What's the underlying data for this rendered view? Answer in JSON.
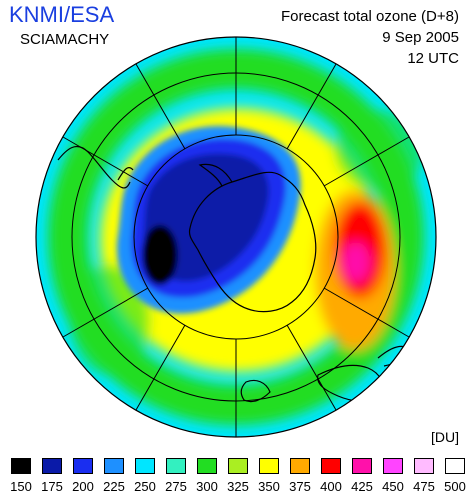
{
  "header": {
    "brand": "KNMI/ESA",
    "instrument": "SCIAMACHY",
    "product": "Forecast total ozone (D+8)",
    "date": "9 Sep 2005",
    "time": "12 UTC"
  },
  "unit": "[DU]",
  "legend": {
    "levels": [
      "150",
      "175",
      "200",
      "225",
      "250",
      "275",
      "300",
      "325",
      "350",
      "375",
      "400",
      "425",
      "450",
      "475",
      "500"
    ],
    "colors": [
      "#000000",
      "#0a1aa8",
      "#1a2ef0",
      "#1e90ff",
      "#00e6ff",
      "#33f0c0",
      "#22dd22",
      "#aaee22",
      "#ffff00",
      "#ffaa00",
      "#ff0000",
      "#ff11aa",
      "#ff44ff",
      "#ffbbff",
      "#ffffff"
    ]
  },
  "map": {
    "projection": "south-polar-stereographic",
    "colors": {
      "ocean_background": "#00e6ff",
      "ring_green": "#22dd22",
      "ring_yellow": "#ffff00",
      "hole_dark": "#0a1aa8",
      "hole_black": "#000000",
      "hole_blue": "#1a2ef0",
      "hole_edge": "#1e90ff",
      "high_red": "#ff0000",
      "high_magenta": "#ff11aa",
      "high_orange": "#ffaa00"
    }
  }
}
